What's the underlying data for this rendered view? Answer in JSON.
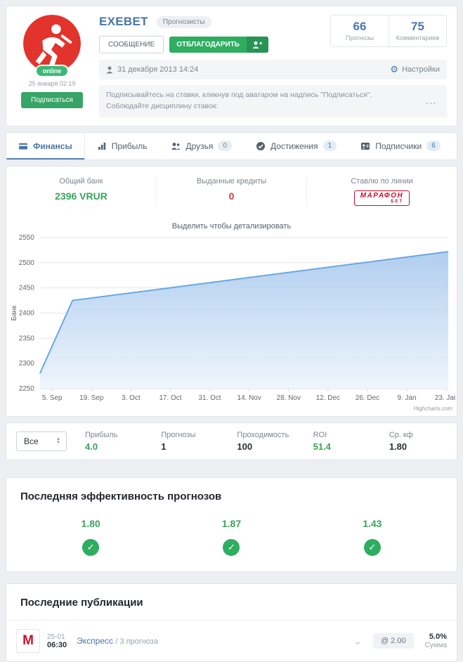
{
  "profile": {
    "name": "EXEBET",
    "category_badge": "Прогнозисты",
    "online_badge": "online",
    "last_seen": "25 января 02:19",
    "subscribe_button": "Подписаться",
    "message_button": "СООБЩЕНИЕ",
    "thank_button": "ОТБЛАГОДАРИТЬ",
    "counters": [
      {
        "value": "66",
        "label": "Прогнозы"
      },
      {
        "value": "75",
        "label": "Комментариев"
      }
    ],
    "registered_date": "31 декабря 2013 14:24",
    "settings_label": "Настройки",
    "note_line1": "Подписывайтесь на ставки, кликнув под аватаром на надпись \"Подписаться\".",
    "note_line2": "Соблюдайте дисциплину ставок:",
    "more_label": "..."
  },
  "tabs": [
    {
      "label": "Финансы"
    },
    {
      "label": "Прибыль"
    },
    {
      "label": "Друзья",
      "badge": "0"
    },
    {
      "label": "Достижения",
      "badge": "1"
    },
    {
      "label": "Подписчики",
      "badge": "6"
    }
  ],
  "finance": {
    "bank_label": "Общий банк",
    "bank_value": "2396 VRUR",
    "credits_label": "Выданные кредиты",
    "credits_value": "0",
    "line_label": "Ставлю по линии",
    "bookmaker_line1": "МАРАФОН",
    "bookmaker_line2": "БЕТ"
  },
  "chart_data": {
    "type": "area",
    "title": "Выделить чтобы детализировать",
    "ylabel": "Банк",
    "ylim": [
      2250,
      2550
    ],
    "y_ticks": [
      2250,
      2300,
      2350,
      2400,
      2450,
      2500,
      2550
    ],
    "x_ticks": [
      "5. Sep",
      "19. Sep",
      "3. Oct",
      "17. Oct",
      "31. Oct",
      "14. Nov",
      "28. Nov",
      "12. Dec",
      "26. Dec",
      "9. Jan",
      "23. Jan"
    ],
    "series": [
      {
        "name": "Банк",
        "points": [
          {
            "pos": 0.0,
            "value": 2280
          },
          {
            "pos": 0.08,
            "value": 2425
          },
          {
            "pos": 1.0,
            "value": 2522
          }
        ]
      }
    ],
    "grid": true,
    "legend": false,
    "line_color": "#6aa7e0",
    "fill_top": "#a9c9ee",
    "fill_bottom": "#eef5fc",
    "credit": "Highcharts.com"
  },
  "summary": {
    "filter_value": "Все",
    "items": [
      {
        "label": "Прибыль",
        "value": "4.0"
      },
      {
        "label": "Прогнозы",
        "value": "1"
      },
      {
        "label": "Проходимость",
        "value": "100"
      },
      {
        "label": "ROI",
        "value": "51.4"
      },
      {
        "label": "Ср. кф",
        "value": "1.80"
      }
    ]
  },
  "effectiveness": {
    "title": "Последняя эффективность прогнозов",
    "items": [
      {
        "value": "1.80"
      },
      {
        "value": "1.87"
      },
      {
        "value": "1.43"
      }
    ]
  },
  "publications": {
    "title": "Последние публикации",
    "rows": [
      {
        "logo": "M",
        "date": "25-01",
        "time": "06:30",
        "link": "Экспресс",
        "meta": "/ 3 прогноза",
        "odds": "@ 2.00",
        "percent": "5.0%",
        "percent_label": "Сумма"
      }
    ]
  },
  "icons": {
    "gear": "⚙",
    "check": "✓",
    "chevron_down": "⌄",
    "arrow_up": "▲",
    "arrow_down": "▼"
  },
  "colors": {
    "accent_blue": "#4a76a8",
    "button_green": "#2fad61",
    "value_green": "#3aa35c",
    "value_red": "#d43f3a",
    "bookmaker_red": "#c8102e"
  }
}
